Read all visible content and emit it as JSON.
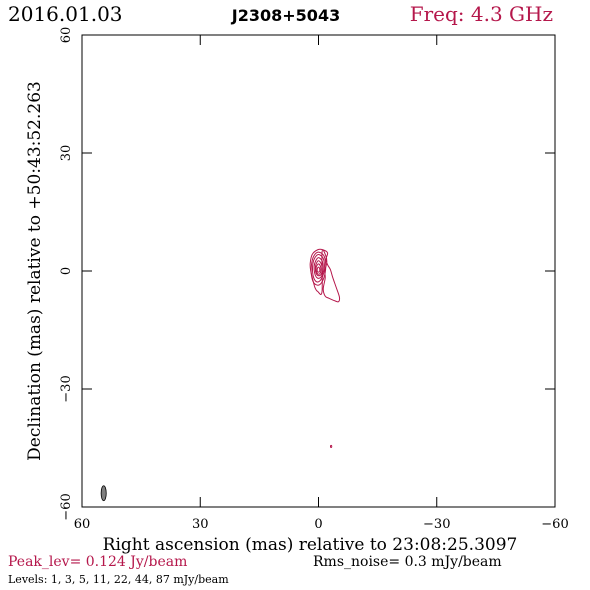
{
  "header": {
    "date": "2016.01.03",
    "source": "J2308+5043",
    "freq": "Freq: 4.3 GHz"
  },
  "footer": {
    "peak": "Peak_lev=  0.124 Jy/beam",
    "rms": "Rms_noise=  0.3 mJy/beam",
    "levels": "Levels:  1,  3,  5,  11,  22,  44,  87 mJy/beam"
  },
  "colors": {
    "contour": "#b5174b",
    "title_accent": "#b5174b",
    "axis": "#000000",
    "beam": "#7f7f7f"
  },
  "chart_data": {
    "type": "contour",
    "title": "J2308+5043",
    "xlabel": "Right ascension (mas) relative to 23:08:25.3097",
    "ylabel": "Declination (mas) relative to +50:43:52.263",
    "xlim": [
      60,
      -60
    ],
    "ylim": [
      -60,
      60
    ],
    "xticks": [
      60,
      30,
      0,
      -30,
      -60
    ],
    "yticks": [
      60,
      30,
      0,
      -30,
      -60
    ],
    "xtick_labels": [
      "60",
      "30",
      "0",
      "−30",
      "−60"
    ],
    "ytick_labels": [
      "60",
      "30",
      "0",
      "−30",
      "−60"
    ],
    "grid": false,
    "levels_mJy": [
      1,
      3,
      5,
      11,
      22,
      44,
      87
    ],
    "peak_Jy_per_beam": 0.124,
    "rms_mJy_per_beam": 0.3,
    "beam": {
      "x": 54.5,
      "y": -56.5,
      "major_mas": 3.8,
      "minor_mas": 1.3,
      "pa_deg": 0
    },
    "contours": [
      {
        "level": 1,
        "points": [
          [
            -0.9,
            4.8
          ],
          [
            -1.8,
            4.0
          ],
          [
            -2.1,
            2.2
          ],
          [
            -1.6,
            0.0
          ],
          [
            -1.7,
            -1.8
          ],
          [
            -1.2,
            -4.6
          ],
          [
            -1.7,
            -6.4
          ],
          [
            -2.6,
            -6.9
          ],
          [
            -4.2,
            -7.6
          ],
          [
            -5.1,
            -7.8
          ],
          [
            -5.3,
            -6.6
          ],
          [
            -4.5,
            -4.2
          ],
          [
            -3.6,
            -1.6
          ],
          [
            -3.0,
            0.4
          ],
          [
            -2.3,
            1.6
          ],
          [
            -1.9,
            3.0
          ],
          [
            -2.3,
            4.6
          ],
          [
            -1.1,
            5.4
          ],
          [
            0.2,
            5.4
          ],
          [
            1.6,
            4.2
          ],
          [
            2.1,
            2.0
          ],
          [
            2.0,
            0.2
          ],
          [
            1.5,
            -2.0
          ],
          [
            0.9,
            -4.2
          ],
          [
            0.2,
            -5.2
          ],
          [
            -0.9,
            -5.2
          ]
        ]
      },
      {
        "level": 3,
        "points": [
          [
            0.1,
            4.8
          ],
          [
            -1.3,
            4.0
          ],
          [
            -1.8,
            2.0
          ],
          [
            -1.7,
            -0.4
          ],
          [
            -1.0,
            -2.6
          ],
          [
            0.0,
            -3.6
          ],
          [
            1.2,
            -3.0
          ],
          [
            1.8,
            -1.0
          ],
          [
            1.8,
            1.4
          ],
          [
            1.3,
            3.6
          ]
        ]
      },
      {
        "level": 5,
        "points": [
          [
            0.0,
            4.2
          ],
          [
            -1.1,
            3.4
          ],
          [
            -1.5,
            1.6
          ],
          [
            -1.3,
            -0.6
          ],
          [
            -0.6,
            -2.2
          ],
          [
            0.3,
            -2.8
          ],
          [
            1.1,
            -2.0
          ],
          [
            1.5,
            -0.2
          ],
          [
            1.4,
            2.0
          ],
          [
            0.9,
            3.4
          ]
        ]
      },
      {
        "level": 11,
        "points": [
          [
            0.0,
            3.4
          ],
          [
            -0.9,
            2.6
          ],
          [
            -1.2,
            1.0
          ],
          [
            -1.0,
            -0.8
          ],
          [
            -0.3,
            -1.8
          ],
          [
            0.5,
            -1.6
          ],
          [
            1.0,
            -0.4
          ],
          [
            1.1,
            1.2
          ],
          [
            0.7,
            2.6
          ]
        ]
      },
      {
        "level": 22,
        "points": [
          [
            0.0,
            2.6
          ],
          [
            -0.7,
            1.8
          ],
          [
            -0.9,
            0.6
          ],
          [
            -0.7,
            -0.8
          ],
          [
            0.0,
            -1.2
          ],
          [
            0.6,
            -0.6
          ],
          [
            0.8,
            0.6
          ],
          [
            0.6,
            1.8
          ]
        ]
      },
      {
        "level": 44,
        "points": [
          [
            0.0,
            1.8
          ],
          [
            -0.5,
            1.2
          ],
          [
            -0.6,
            0.2
          ],
          [
            -0.4,
            -0.6
          ],
          [
            0.1,
            -0.8
          ],
          [
            0.5,
            -0.2
          ],
          [
            0.6,
            0.8
          ],
          [
            0.4,
            1.4
          ]
        ]
      },
      {
        "level": 87,
        "points": [
          [
            0.0,
            1.0
          ],
          [
            -0.3,
            0.6
          ],
          [
            -0.3,
            0.0
          ],
          [
            0.0,
            -0.3
          ],
          [
            0.3,
            0.0
          ],
          [
            0.3,
            0.6
          ]
        ]
      }
    ],
    "isolated_components": [
      {
        "x": -3.2,
        "y": -44.6,
        "size_mas": 0.4
      }
    ]
  }
}
